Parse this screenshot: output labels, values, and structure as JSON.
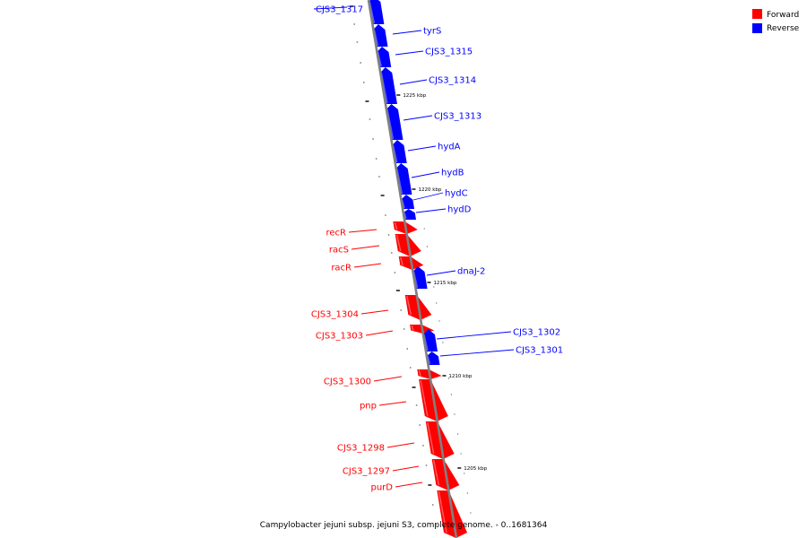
{
  "colors": {
    "forward": "#ff0000",
    "reverse": "#0000ff",
    "backbone": "#808080"
  },
  "legend": {
    "forward_label": "Forward",
    "reverse_label": "Reverse"
  },
  "caption": "Campylobacter jejuni subsp. jejuni S3, complete genome. - 0..1681364",
  "tick_labels": [
    "1225 kbp",
    "1220 kbp",
    "1215 kbp",
    "1210 kbp",
    "1205 kbp"
  ],
  "genes": [
    {
      "name": "CJS3_1317",
      "strand": "reverse"
    },
    {
      "name": "tyrS",
      "strand": "reverse"
    },
    {
      "name": "CJS3_1315",
      "strand": "reverse"
    },
    {
      "name": "CJS3_1314",
      "strand": "reverse"
    },
    {
      "name": "CJS3_1313",
      "strand": "reverse"
    },
    {
      "name": "hydA",
      "strand": "reverse"
    },
    {
      "name": "hydB",
      "strand": "reverse"
    },
    {
      "name": "hydC",
      "strand": "reverse"
    },
    {
      "name": "hydD",
      "strand": "reverse"
    },
    {
      "name": "recR",
      "strand": "forward"
    },
    {
      "name": "racS",
      "strand": "forward"
    },
    {
      "name": "racR",
      "strand": "forward"
    },
    {
      "name": "dnaJ-2",
      "strand": "reverse"
    },
    {
      "name": "CJS3_1304",
      "strand": "forward"
    },
    {
      "name": "CJS3_1303",
      "strand": "forward"
    },
    {
      "name": "CJS3_1302",
      "strand": "reverse"
    },
    {
      "name": "CJS3_1301",
      "strand": "reverse"
    },
    {
      "name": "CJS3_1300",
      "strand": "forward"
    },
    {
      "name": "pnp",
      "strand": "forward"
    },
    {
      "name": "CJS3_1298",
      "strand": "forward"
    },
    {
      "name": "CJS3_1297",
      "strand": "forward"
    },
    {
      "name": "purD",
      "strand": "forward"
    }
  ]
}
